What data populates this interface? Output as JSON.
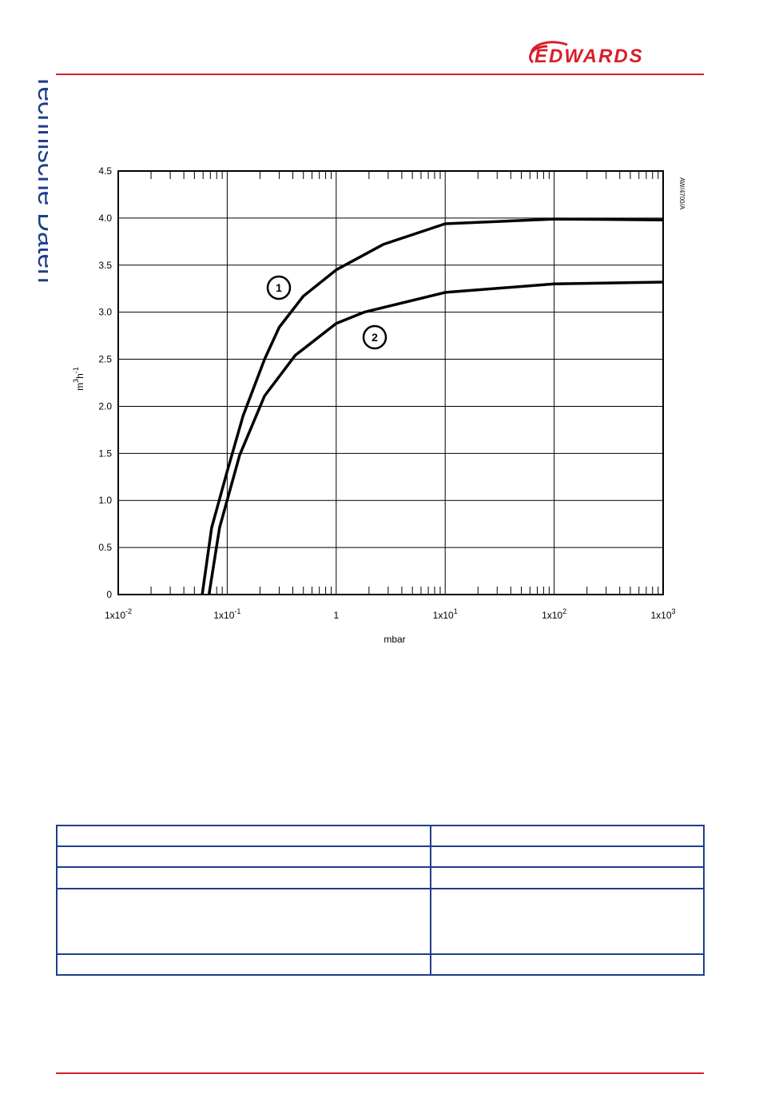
{
  "header": {
    "logo": "EDWARDS"
  },
  "sidebar": "Technische Daten",
  "chart_data": {
    "type": "line",
    "log_x": true,
    "grid": true,
    "xlabel": "mbar",
    "ylabel_parts": [
      "m",
      "3",
      "h",
      "-1"
    ],
    "annotation": "AW/4700/A",
    "xlim": [
      0.01,
      1000
    ],
    "ylim": [
      0,
      4.5
    ],
    "xticks": [
      {
        "value": 0.01,
        "label": "1x10",
        "sup": "-2"
      },
      {
        "value": 0.1,
        "label": "1x10",
        "sup": "-1"
      },
      1,
      {
        "value": 10,
        "label": "1x10",
        "sup": "1"
      },
      {
        "value": 100,
        "label": "1x10",
        "sup": "2"
      },
      {
        "value": 1000,
        "label": "1x10",
        "sup": "3"
      }
    ],
    "yticks": [
      0,
      0.5,
      {
        "value": 1,
        "label": "1.0"
      },
      1.5,
      {
        "value": 2,
        "label": "2.0"
      },
      2.5,
      {
        "value": 3,
        "label": "3.0"
      },
      3.5,
      {
        "value": 4,
        "label": "4.0"
      },
      4.5
    ],
    "series": [
      {
        "name": "1",
        "color": "#000000",
        "x": [
          0.059,
          0.072,
          0.1,
          0.14,
          0.22,
          0.3,
          0.5,
          1,
          2.7,
          10,
          100,
          1000
        ],
        "values": [
          0,
          0.71,
          1.31,
          1.9,
          2.5,
          2.84,
          3.17,
          3.45,
          3.72,
          3.94,
          3.99,
          3.98
        ]
      },
      {
        "name": "2",
        "color": "#000000",
        "x": [
          0.068,
          0.085,
          0.13,
          0.22,
          0.42,
          1,
          1.8,
          10,
          100,
          1000
        ],
        "values": [
          0,
          0.71,
          1.48,
          2.11,
          2.54,
          2.88,
          3.0,
          3.21,
          3.3,
          3.32
        ]
      }
    ]
  }
}
